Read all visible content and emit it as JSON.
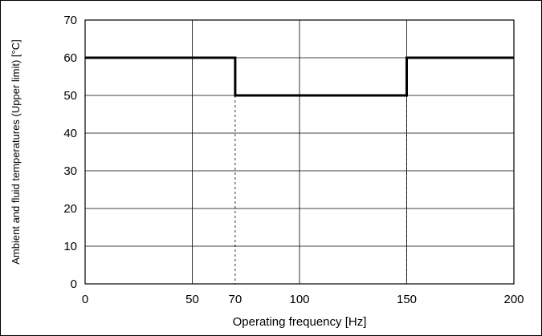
{
  "chart_data": {
    "type": "line",
    "title": "",
    "xlabel": "Operating frequency [Hz]",
    "ylabel": "Ambient and fluid temperatures (Upper limit) [°C]",
    "xlim": [
      0,
      200
    ],
    "ylim": [
      0,
      70
    ],
    "x_ticks": [
      0,
      50,
      70,
      100,
      150,
      200
    ],
    "y_ticks": [
      0,
      10,
      20,
      30,
      40,
      50,
      60,
      70
    ],
    "x_gridlines": [
      50,
      100,
      150
    ],
    "dashed_markers": [
      70,
      150
    ],
    "grid": true,
    "legend": "none",
    "series": [
      {
        "x": [
          0,
          70,
          70,
          150,
          150,
          200
        ],
        "y": [
          60,
          60,
          50,
          50,
          60,
          60
        ],
        "color": "#000000"
      }
    ]
  }
}
